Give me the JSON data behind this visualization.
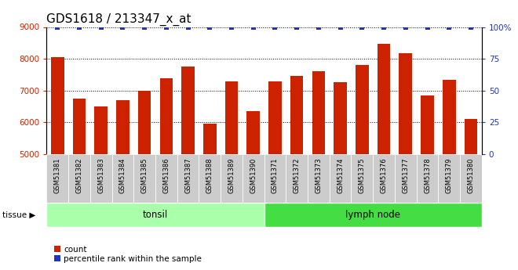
{
  "title": "GDS1618 / 213347_x_at",
  "categories": [
    "GSM51381",
    "GSM51382",
    "GSM51383",
    "GSM51384",
    "GSM51385",
    "GSM51386",
    "GSM51387",
    "GSM51388",
    "GSM51389",
    "GSM51390",
    "GSM51371",
    "GSM51372",
    "GSM51373",
    "GSM51374",
    "GSM51375",
    "GSM51376",
    "GSM51377",
    "GSM51378",
    "GSM51379",
    "GSM51380"
  ],
  "values": [
    8050,
    6750,
    6500,
    6700,
    7000,
    7380,
    7750,
    5950,
    7280,
    6340,
    7280,
    7450,
    7610,
    7260,
    7800,
    8480,
    8180,
    6840,
    7330,
    6100
  ],
  "percentiles": [
    100,
    100,
    100,
    100,
    100,
    100,
    100,
    100,
    100,
    100,
    100,
    100,
    100,
    100,
    100,
    100,
    100,
    100,
    100,
    100
  ],
  "bar_color": "#cc2200",
  "pct_color": "#2233bb",
  "ylim_left": [
    5000,
    9000
  ],
  "ylim_right": [
    0,
    100
  ],
  "yticks_left": [
    5000,
    6000,
    7000,
    8000,
    9000
  ],
  "yticks_right": [
    0,
    25,
    50,
    75,
    100
  ],
  "tissue_groups": [
    {
      "label": "tonsil",
      "start": 0,
      "end": 10,
      "color": "#aaffaa"
    },
    {
      "label": "lymph node",
      "start": 10,
      "end": 20,
      "color": "#44dd44"
    }
  ],
  "tissue_label": "tissue ▶",
  "legend_count_label": "count",
  "legend_pct_label": "percentile rank within the sample",
  "bg_color": "#ffffff",
  "bar_width": 0.6,
  "tick_color_left": "#cc2200",
  "tick_color_right": "#2233bb",
  "label_bg_color": "#cccccc",
  "title_fontsize": 11,
  "axis_tick_fontsize": 7.5,
  "cat_fontsize": 6.0,
  "tissue_fontsize": 8.5,
  "legend_fontsize": 7.5
}
